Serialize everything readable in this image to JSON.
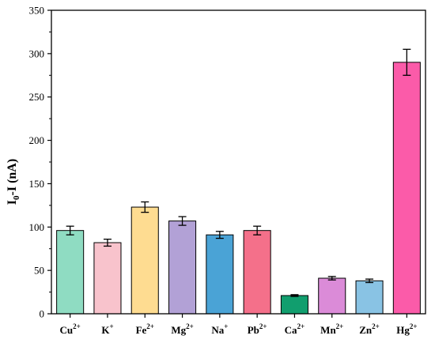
{
  "chart_data": {
    "type": "bar",
    "title": "",
    "xlabel": "",
    "ylabel": {
      "base": "I",
      "sub": "0",
      "rest": "-I (nA)"
    },
    "ylim": [
      0,
      350
    ],
    "yticks": [
      0,
      50,
      100,
      150,
      200,
      250,
      300,
      350
    ],
    "grid": false,
    "legend": "none",
    "categories": [
      {
        "base": "Cu",
        "sup": "2+"
      },
      {
        "base": "K",
        "sup": "+"
      },
      {
        "base": "Fe",
        "sup": "2+"
      },
      {
        "base": "Mg",
        "sup": "2+"
      },
      {
        "base": "Na",
        "sup": "+"
      },
      {
        "base": "Pb",
        "sup": "2+"
      },
      {
        "base": "Ca",
        "sup": "2+"
      },
      {
        "base": "Mn",
        "sup": "2+"
      },
      {
        "base": "Zn",
        "sup": "2+"
      },
      {
        "base": "Hg",
        "sup": "2+"
      }
    ],
    "values": [
      96,
      82,
      123,
      107,
      91,
      96,
      21,
      41,
      38,
      290
    ],
    "errors": [
      5,
      4,
      6,
      5,
      4,
      5,
      1,
      2,
      2,
      15
    ],
    "colors": [
      "#8FDCC2",
      "#F8C3CC",
      "#FEDC91",
      "#B2A1D6",
      "#4AA3D6",
      "#F4708A",
      "#119E6E",
      "#DB8BD8",
      "#89C3E4",
      "#FB5BA9"
    ]
  }
}
